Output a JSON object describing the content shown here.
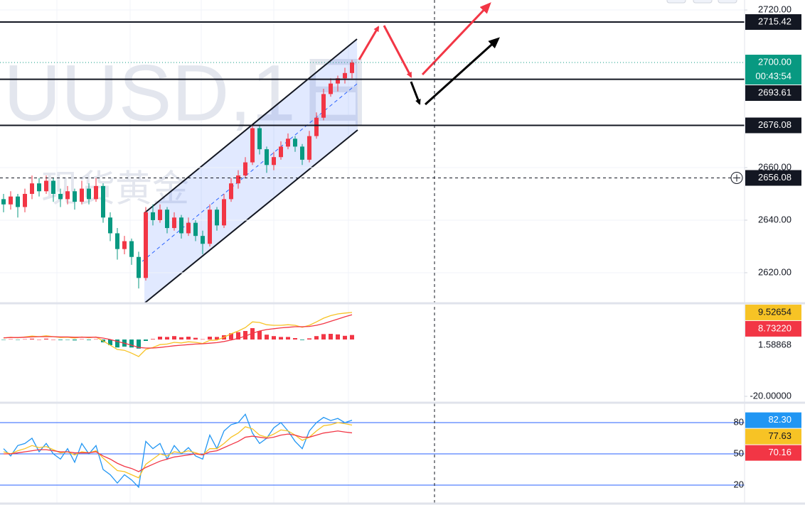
{
  "chart_data": [
    {
      "type": "candlestick",
      "watermark": [
        "UUSD,1日",
        "现货黄金"
      ],
      "open": [
        2648,
        2646,
        2649,
        2645,
        2650,
        2654,
        2651,
        2655,
        2650,
        2648,
        2651,
        2647,
        2652,
        2648,
        2653,
        2641,
        2635,
        2629,
        2632,
        2626,
        2618,
        2643,
        2640,
        2644,
        2637,
        2641,
        2635,
        2639,
        2634,
        2631,
        2644,
        2638,
        2648,
        2654,
        2657,
        2662,
        2675,
        2667,
        2661,
        2664,
        2668,
        2671,
        2668,
        2663,
        2672,
        2679,
        2688,
        2692,
        2694,
        2696
      ],
      "high": [
        2650,
        2651,
        2650,
        2652,
        2657,
        2656,
        2657,
        2656,
        2652,
        2653,
        2652,
        2655,
        2654,
        2656,
        2654,
        2643,
        2637,
        2634,
        2633,
        2628,
        2645,
        2646,
        2646,
        2645,
        2643,
        2642,
        2641,
        2640,
        2636,
        2646,
        2645,
        2650,
        2656,
        2659,
        2664,
        2676,
        2676,
        2668,
        2666,
        2670,
        2673,
        2672,
        2669,
        2674,
        2681,
        2690,
        2694,
        2695,
        2698,
        2701
      ],
      "low": [
        2643,
        2644,
        2641,
        2643,
        2648,
        2649,
        2650,
        2647,
        2645,
        2646,
        2644,
        2646,
        2646,
        2647,
        2639,
        2632,
        2625,
        2627,
        2623,
        2614,
        2617,
        2638,
        2639,
        2635,
        2636,
        2633,
        2634,
        2632,
        2627,
        2630,
        2636,
        2637,
        2647,
        2652,
        2656,
        2661,
        2665,
        2658,
        2659,
        2663,
        2667,
        2666,
        2661,
        2662,
        2671,
        2678,
        2687,
        2689,
        2692,
        2694
      ],
      "close": [
        2646,
        2649,
        2645,
        2650,
        2654,
        2651,
        2655,
        2650,
        2648,
        2651,
        2647,
        2652,
        2648,
        2653,
        2641,
        2635,
        2629,
        2632,
        2626,
        2618,
        2643,
        2640,
        2644,
        2637,
        2641,
        2635,
        2639,
        2634,
        2631,
        2644,
        2638,
        2648,
        2654,
        2657,
        2662,
        2675,
        2667,
        2661,
        2664,
        2668,
        2671,
        2668,
        2663,
        2672,
        2679,
        2688,
        2692,
        2694,
        2696,
        2700
      ],
      "up_color": "#f23645",
      "down_color": "#089981",
      "ylim": [
        2608.9,
        2723.8
      ],
      "yticks": [
        {
          "value": 2720,
          "label": "2720.00"
        },
        {
          "value": 2660,
          "label": "2660.00"
        },
        {
          "value": 2640,
          "label": "2640.00"
        },
        {
          "value": 2620,
          "label": "2620.00"
        }
      ],
      "price_lines": [
        2715.42,
        2693.61,
        2676.08
      ],
      "last_price": {
        "value": 2700,
        "label": "2700.00",
        "color": "#089981"
      },
      "countdown": "00:43:54",
      "crosshair_price": 2656.08
    },
    {
      "type": "macd",
      "series": [
        {
          "color": "#f7c325",
          "values": [
            0.5,
            0.8,
            0.6,
            0.9,
            1.2,
            1.0,
            1.3,
            1.0,
            0.7,
            0.8,
            0.5,
            0.9,
            0.6,
            0.9,
            -0.5,
            -2.0,
            -3.5,
            -3.8,
            -4.8,
            -6.0,
            -3.5,
            -2.8,
            -1.8,
            -1.6,
            -1.0,
            -1.2,
            -0.8,
            -1.0,
            -1.4,
            -0.3,
            -0.2,
            0.8,
            2.0,
            3.0,
            4.2,
            6.2,
            6.0,
            5.2,
            5.0,
            5.0,
            5.2,
            5.0,
            4.3,
            5.0,
            6.2,
            7.5,
            8.4,
            9.0,
            9.3,
            9.52654
          ]
        },
        {
          "color": "#f23645",
          "values": [
            0.6,
            0.7,
            0.7,
            0.8,
            0.9,
            1.0,
            1.0,
            1.0,
            0.9,
            0.9,
            0.8,
            0.8,
            0.8,
            0.8,
            0.5,
            0.0,
            -0.7,
            -1.3,
            -2.0,
            -2.8,
            -3.0,
            -3.0,
            -2.8,
            -2.5,
            -2.2,
            -2.0,
            -1.8,
            -1.6,
            -1.5,
            -1.3,
            -1.1,
            -0.7,
            -0.2,
            0.4,
            1.2,
            2.2,
            3.0,
            3.5,
            3.8,
            4.1,
            4.3,
            4.5,
            4.5,
            4.6,
            5.0,
            5.6,
            6.4,
            7.2,
            8.0,
            8.7322
          ]
        }
      ],
      "histogram": {
        "up_color": "#f23645",
        "down_color": "#089981",
        "values": [
          -0.1,
          0.1,
          -0.1,
          0.1,
          0.3,
          0,
          0.3,
          0,
          -0.2,
          -0.1,
          -0.3,
          0.1,
          -0.2,
          0.1,
          -1.0,
          -2.0,
          -2.8,
          -2.5,
          -2.8,
          -3.2,
          -0.5,
          0.2,
          1.0,
          0.9,
          1.2,
          0.8,
          1.0,
          0.6,
          0.1,
          1.0,
          0.9,
          1.5,
          2.2,
          2.6,
          3.0,
          4.0,
          3.0,
          1.7,
          1.2,
          0.9,
          0.9,
          0.5,
          -0.2,
          0.4,
          1.2,
          1.9,
          2.0,
          1.8,
          1.3,
          1.58868
        ]
      },
      "ylim": [
        -21.75,
        12.5
      ],
      "yticks": [
        {
          "value": -20,
          "label": "-20.00000"
        }
      ],
      "last_value_labels": [
        {
          "value": 9.52654,
          "label": "9.52654",
          "color": "#f7c325"
        },
        {
          "value": 8.7322,
          "label": "8.73220",
          "color": "#f23645"
        },
        {
          "value": 1.58868,
          "label": "1.58868"
        }
      ]
    },
    {
      "type": "rsi",
      "series": [
        {
          "color": "#2196f3",
          "values": [
            55,
            48,
            58,
            60,
            65,
            52,
            60,
            50,
            45,
            55,
            42,
            60,
            50,
            58,
            35,
            30,
            22,
            30,
            25,
            18,
            62,
            55,
            60,
            45,
            58,
            50,
            56,
            48,
            45,
            68,
            55,
            72,
            78,
            80,
            88,
            70,
            60,
            65,
            75,
            80,
            72,
            62,
            55,
            72,
            80,
            85,
            82,
            84,
            80,
            82.3
          ]
        },
        {
          "color": "#f7c325",
          "values": [
            52,
            50,
            53,
            55,
            58,
            56,
            57,
            54,
            51,
            52,
            49,
            52,
            51,
            53,
            46,
            40,
            34,
            33,
            30,
            27,
            40,
            45,
            50,
            48,
            52,
            51,
            53,
            51,
            49,
            55,
            55,
            60,
            66,
            70,
            76,
            74,
            68,
            66,
            69,
            73,
            72,
            68,
            63,
            66,
            72,
            77,
            78,
            80,
            79,
            77.63
          ]
        },
        {
          "color": "#f23645",
          "values": [
            50,
            50,
            51,
            52,
            53,
            54,
            54,
            53,
            52,
            52,
            51,
            51,
            51,
            52,
            48,
            45,
            41,
            38,
            36,
            33,
            37,
            40,
            43,
            45,
            47,
            48,
            49,
            50,
            49,
            52,
            53,
            56,
            59,
            62,
            66,
            67,
            66,
            65,
            66,
            68,
            69,
            68,
            66,
            66,
            68,
            70,
            71,
            72,
            71,
            70.16
          ]
        }
      ],
      "levels": [
        80,
        50,
        20
      ],
      "level_color": "#2962ff",
      "ylim": [
        3,
        98.4
      ],
      "last_value_labels": [
        {
          "value": 82.3,
          "label": "82.30",
          "color": "#2196f3"
        },
        {
          "value": 77.63,
          "label": "77.63",
          "color": "#f7c325"
        },
        {
          "value": 70.16,
          "label": "70.16",
          "color": "#f23645"
        }
      ]
    }
  ]
}
